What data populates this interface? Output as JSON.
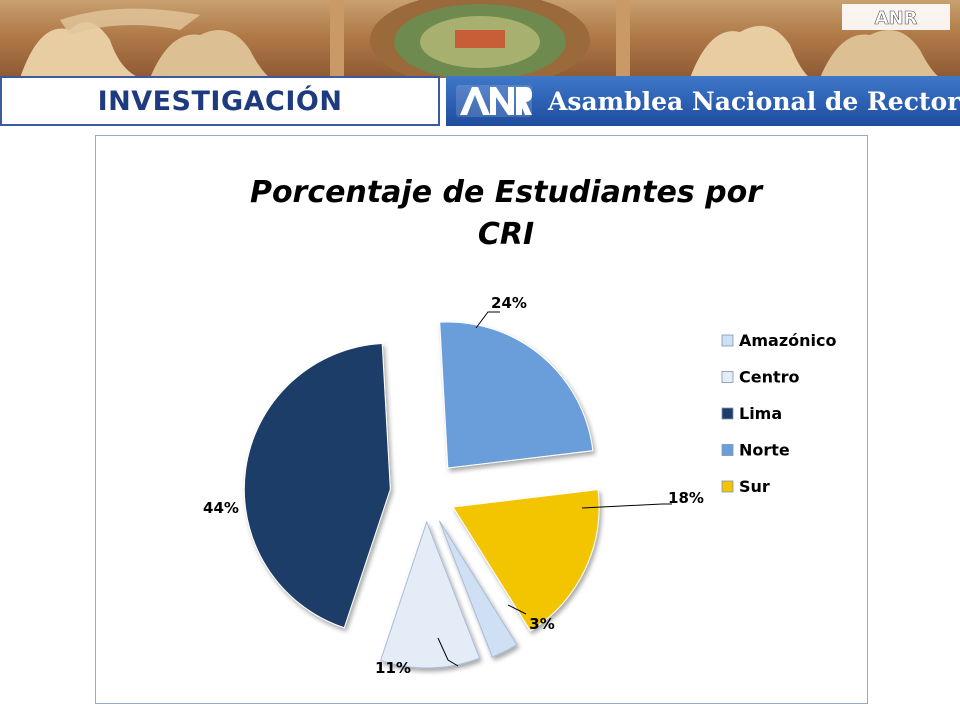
{
  "header": {
    "section_title": "INVESTIGACIÓN",
    "org_name": "Asamblea Nacional de Rectores",
    "logo_text": "ANR",
    "banner_color": "#2c5fb2",
    "title_color": "#1f3b80"
  },
  "chart_data": {
    "type": "pie",
    "title_lines": [
      "Porcentaje de  Estudiantes por",
      "CRI"
    ],
    "categories": [
      "Amazónico",
      "Centro",
      "Lima",
      "Norte",
      "Sur"
    ],
    "values": [
      3,
      11,
      44,
      24,
      18
    ],
    "labels": [
      "3%",
      "11%",
      "44%",
      "24%",
      "18%"
    ],
    "colors": [
      "#cfe0f4",
      "#e4ecf8",
      "#1f3d68",
      "#6a9edb",
      "#f3c400"
    ],
    "exploded": true,
    "legend_position": "right",
    "label_style": "outside with leader lines"
  }
}
